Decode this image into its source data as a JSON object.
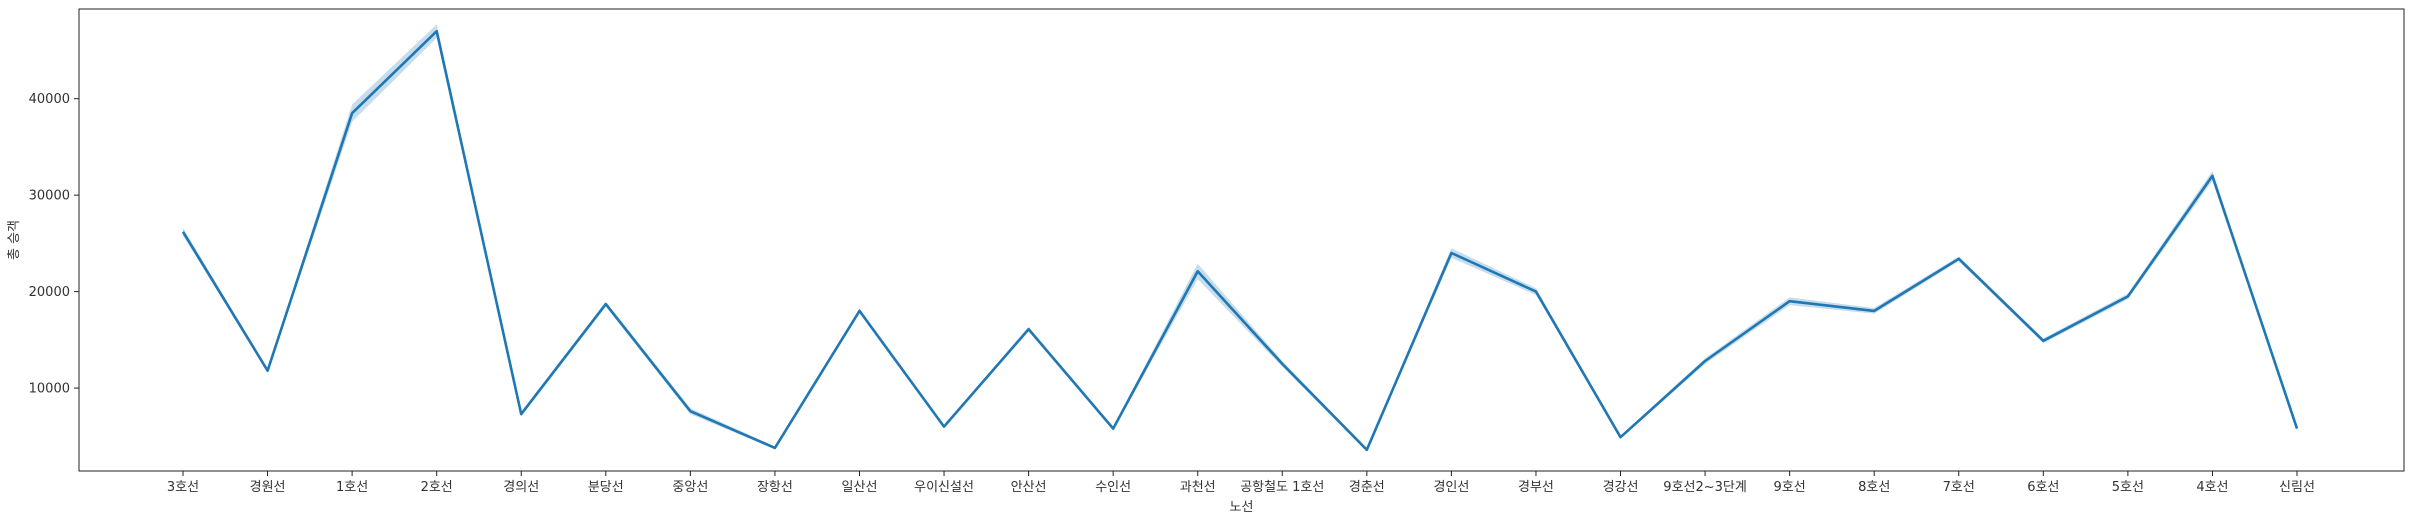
{
  "chart_data": {
    "type": "line",
    "xlabel": "노선",
    "ylabel": "총 승객",
    "categories": [
      "3호선",
      "경원선",
      "1호선",
      "2호선",
      "경의선",
      "분당선",
      "중앙선",
      "장항선",
      "일산선",
      "우이신설선",
      "안산선",
      "수인선",
      "과천선",
      "공항철도 1호선",
      "경춘선",
      "경인선",
      "경부선",
      "경강선",
      "9호선2~3단계",
      "9호선",
      "8호선",
      "7호선",
      "6호선",
      "5호선",
      "4호선",
      "신림선"
    ],
    "values": [
      26200,
      11800,
      38500,
      47000,
      7300,
      18700,
      7600,
      3800,
      18000,
      6000,
      16100,
      5800,
      22100,
      12500,
      3600,
      24000,
      20000,
      4900,
      12800,
      19000,
      18000,
      23400,
      14900,
      19500,
      32000,
      5800
    ],
    "ci_half_width": [
      400,
      200,
      900,
      700,
      250,
      250,
      300,
      150,
      250,
      150,
      250,
      150,
      800,
      300,
      150,
      500,
      350,
      150,
      300,
      400,
      300,
      250,
      250,
      300,
      500,
      150
    ],
    "yticks": [
      10000,
      20000,
      30000,
      40000
    ],
    "ylim": [
      1400,
      49300
    ],
    "grid": false,
    "colors": {
      "line": "#1f77b4",
      "band": "#1f77b4",
      "axis": "#222222"
    }
  }
}
